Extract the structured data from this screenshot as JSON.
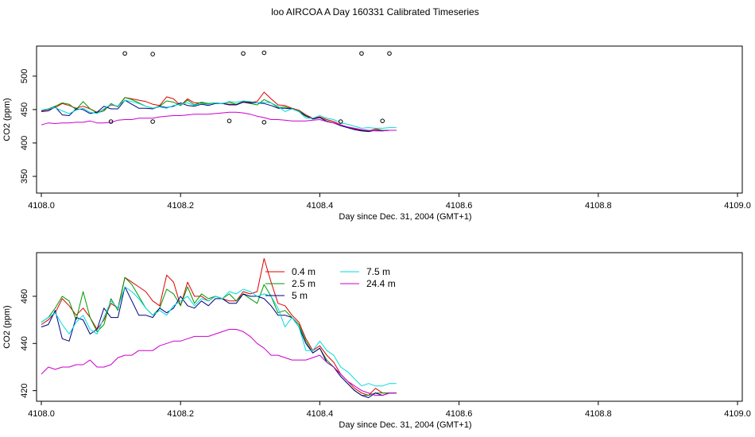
{
  "figure": {
    "title": "loo AIRCOA A  Day 160331  Calibrated Timeseries"
  },
  "chart_data": [
    {
      "type": "line",
      "xlabel": "Day since Dec. 31, 2004 (GMT+1)",
      "ylabel": "CO2 (ppm)",
      "xlim": [
        4108.0,
        4109.0
      ],
      "ylim": [
        325,
        545
      ],
      "xticks": [
        "4108.0",
        "4108.2",
        "4108.4",
        "4108.6",
        "4108.8",
        "4109.0"
      ],
      "yticks": [
        "350",
        "400",
        "450",
        "500"
      ],
      "x": [
        4108.0,
        4108.01,
        4108.02,
        4108.03,
        4108.04,
        4108.05,
        4108.06,
        4108.07,
        4108.08,
        4108.09,
        4108.1,
        4108.11,
        4108.12,
        4108.13,
        4108.14,
        4108.15,
        4108.16,
        4108.17,
        4108.18,
        4108.19,
        4108.2,
        4108.21,
        4108.22,
        4108.23,
        4108.24,
        4108.25,
        4108.26,
        4108.27,
        4108.28,
        4108.29,
        4108.3,
        4108.31,
        4108.32,
        4108.33,
        4108.34,
        4108.35,
        4108.36,
        4108.37,
        4108.38,
        4108.39,
        4108.4,
        4108.41,
        4108.42,
        4108.43,
        4108.44,
        4108.45,
        4108.46,
        4108.47,
        4108.48,
        4108.49,
        4108.5,
        4108.51
      ],
      "series": [
        {
          "name": "0.4 m",
          "color": "#dd0000",
          "values": [
            448,
            450,
            453,
            459,
            456,
            452,
            455,
            451,
            446,
            450,
            457,
            455,
            468,
            466,
            464,
            462,
            458,
            456,
            469,
            466,
            456,
            466,
            460,
            460,
            458,
            460,
            459,
            458,
            458,
            462,
            461,
            462,
            476,
            466,
            457,
            456,
            452,
            449,
            442,
            437,
            439,
            435,
            432,
            427,
            424,
            421,
            419,
            418,
            421,
            419,
            419,
            419
          ]
        },
        {
          "name": "2.5 m",
          "color": "#009900",
          "values": [
            449,
            451,
            455,
            460,
            458,
            450,
            462,
            451,
            445,
            448,
            459,
            454,
            468,
            465,
            460,
            455,
            452,
            455,
            463,
            461,
            456,
            464,
            457,
            461,
            459,
            460,
            459,
            461,
            458,
            461,
            459,
            457,
            465,
            460,
            453,
            454,
            451,
            448,
            441,
            436,
            438,
            433,
            430,
            426,
            423,
            420,
            418,
            418,
            419,
            419,
            419,
            419
          ]
        },
        {
          "name": "5 m",
          "color": "#000080",
          "values": [
            447,
            448,
            454,
            442,
            441,
            451,
            450,
            444,
            446,
            455,
            451,
            451,
            464,
            458,
            452,
            452,
            451,
            455,
            453,
            455,
            460,
            456,
            455,
            458,
            456,
            459,
            459,
            457,
            457,
            461,
            460,
            460,
            459,
            456,
            452,
            452,
            451,
            447,
            440,
            436,
            438,
            432,
            430,
            426,
            423,
            420,
            418,
            417,
            419,
            418,
            419,
            419
          ]
        },
        {
          "name": "7.5 m",
          "color": "#00dddd",
          "values": [
            449,
            451,
            453,
            448,
            444,
            449,
            452,
            446,
            444,
            451,
            458,
            455,
            464,
            462,
            459,
            455,
            452,
            454,
            452,
            456,
            458,
            460,
            456,
            459,
            458,
            460,
            459,
            462,
            461,
            463,
            462,
            460,
            461,
            460,
            455,
            447,
            451,
            447,
            437,
            437,
            441,
            437,
            435,
            430,
            428,
            425,
            422,
            423,
            422,
            422,
            423,
            423
          ]
        },
        {
          "name": "24.4 m",
          "color": "#cc00cc",
          "values": [
            427,
            430,
            429,
            430,
            430,
            431,
            431,
            433,
            430,
            430,
            431,
            434,
            435,
            435,
            437,
            437,
            437,
            439,
            440,
            441,
            441,
            442,
            443,
            443,
            443,
            444,
            445,
            446,
            446,
            445,
            443,
            440,
            438,
            435,
            435,
            434,
            433,
            433,
            433,
            434,
            435,
            432,
            430,
            427,
            424,
            422,
            420,
            419,
            418,
            418,
            419,
            419
          ]
        }
      ],
      "markers": {
        "x": [
          4108.1,
          4108.12,
          4108.16,
          4108.16,
          4108.27,
          4108.29,
          4108.32,
          4108.32,
          4108.43,
          4108.46,
          4108.49,
          4108.5
        ],
        "y": [
          432,
          534,
          432,
          533,
          433,
          534,
          431,
          535,
          432,
          534,
          433,
          534
        ]
      }
    },
    {
      "type": "line",
      "xlabel": "Day since Dec. 31, 2004 (GMT+1)",
      "ylabel": "CO2 (ppm)",
      "xlim": [
        4108.0,
        4109.0
      ],
      "ylim": [
        415.5,
        478.5
      ],
      "xticks": [
        "4108.0",
        "4108.2",
        "4108.4",
        "4108.6",
        "4108.8",
        "4109.0"
      ],
      "yticks": [
        "420",
        "440",
        "460"
      ],
      "legend": {
        "position": "top-center",
        "entries": [
          "0.4 m",
          "2.5 m",
          "5 m",
          "7.5 m",
          "24.4 m"
        ]
      },
      "x": [
        4108.0,
        4108.01,
        4108.02,
        4108.03,
        4108.04,
        4108.05,
        4108.06,
        4108.07,
        4108.08,
        4108.09,
        4108.1,
        4108.11,
        4108.12,
        4108.13,
        4108.14,
        4108.15,
        4108.16,
        4108.17,
        4108.18,
        4108.19,
        4108.2,
        4108.21,
        4108.22,
        4108.23,
        4108.24,
        4108.25,
        4108.26,
        4108.27,
        4108.28,
        4108.29,
        4108.3,
        4108.31,
        4108.32,
        4108.33,
        4108.34,
        4108.35,
        4108.36,
        4108.37,
        4108.38,
        4108.39,
        4108.4,
        4108.41,
        4108.42,
        4108.43,
        4108.44,
        4108.45,
        4108.46,
        4108.47,
        4108.48,
        4108.49,
        4108.5,
        4108.51
      ],
      "series": [
        {
          "name": "0.4 m",
          "color": "#dd0000",
          "values": [
            448,
            450,
            453,
            459,
            456,
            452,
            455,
            451,
            446,
            450,
            457,
            455,
            468,
            466,
            464,
            462,
            458,
            456,
            469,
            466,
            456,
            466,
            460,
            460,
            458,
            460,
            459,
            458,
            458,
            462,
            461,
            462,
            476,
            466,
            457,
            456,
            452,
            449,
            442,
            437,
            439,
            435,
            432,
            427,
            424,
            421,
            419,
            418,
            421,
            419,
            419,
            419
          ]
        },
        {
          "name": "2.5 m",
          "color": "#009900",
          "values": [
            449,
            451,
            455,
            460,
            458,
            450,
            462,
            451,
            445,
            448,
            459,
            454,
            468,
            465,
            460,
            455,
            452,
            455,
            463,
            461,
            456,
            464,
            457,
            461,
            459,
            460,
            459,
            461,
            458,
            461,
            459,
            457,
            465,
            460,
            453,
            454,
            451,
            448,
            441,
            436,
            438,
            433,
            430,
            426,
            423,
            420,
            418,
            418,
            419,
            419,
            419,
            419
          ]
        },
        {
          "name": "5 m",
          "color": "#000080",
          "values": [
            447,
            448,
            454,
            442,
            441,
            451,
            450,
            444,
            446,
            455,
            451,
            451,
            464,
            458,
            452,
            452,
            451,
            455,
            453,
            455,
            460,
            456,
            455,
            458,
            456,
            459,
            459,
            457,
            457,
            461,
            460,
            460,
            459,
            456,
            452,
            452,
            451,
            447,
            440,
            436,
            438,
            432,
            430,
            426,
            423,
            420,
            418,
            417,
            419,
            418,
            419,
            419
          ]
        },
        {
          "name": "7.5 m",
          "color": "#00dddd",
          "values": [
            449,
            451,
            453,
            448,
            444,
            449,
            452,
            446,
            444,
            451,
            458,
            455,
            464,
            462,
            459,
            455,
            452,
            454,
            452,
            456,
            458,
            460,
            456,
            459,
            458,
            460,
            459,
            462,
            461,
            463,
            462,
            460,
            461,
            460,
            455,
            447,
            451,
            447,
            437,
            437,
            441,
            437,
            435,
            430,
            428,
            425,
            422,
            423,
            422,
            422,
            423,
            423
          ]
        },
        {
          "name": "24.4 m",
          "color": "#cc00cc",
          "values": [
            427,
            430,
            429,
            430,
            430,
            431,
            431,
            433,
            430,
            430,
            431,
            434,
            435,
            435,
            437,
            437,
            437,
            439,
            440,
            441,
            441,
            442,
            443,
            443,
            443,
            444,
            445,
            446,
            446,
            445,
            443,
            440,
            438,
            435,
            435,
            434,
            433,
            433,
            433,
            434,
            435,
            432,
            430,
            427,
            424,
            422,
            420,
            419,
            418,
            418,
            419,
            419
          ]
        }
      ]
    }
  ]
}
